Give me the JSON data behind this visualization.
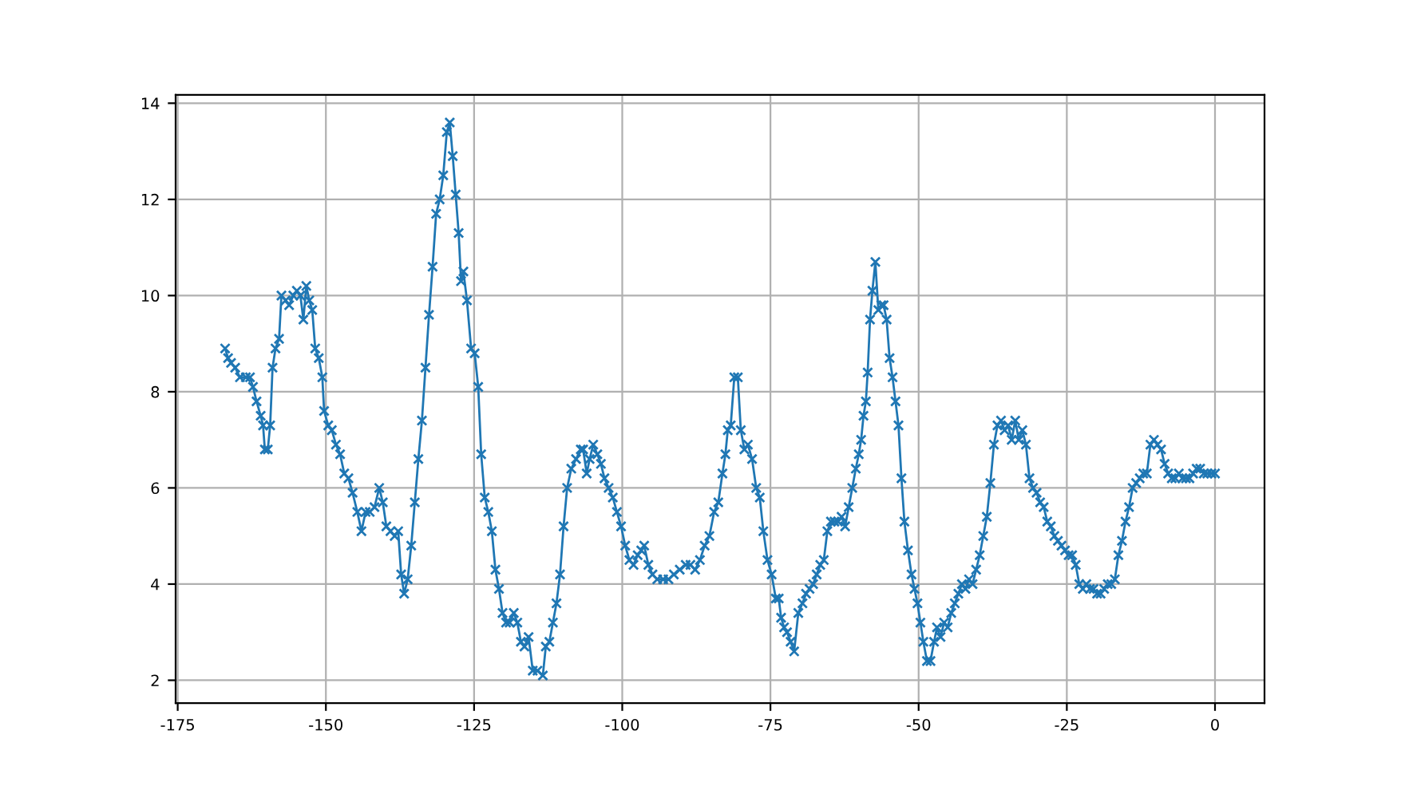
{
  "chart_data": {
    "type": "line",
    "marker": "cross",
    "grid": true,
    "xlim": [
      -175.35,
      8.35
    ],
    "ylim": [
      1.525,
      14.175
    ],
    "xticks": [
      -175,
      -150,
      -125,
      -100,
      -75,
      -50,
      -25,
      0
    ],
    "yticks": [
      2,
      4,
      6,
      8,
      10,
      12,
      14
    ],
    "series": [
      {
        "color": "#1f77b4",
        "x": [
          -167,
          -166.5,
          -166,
          -165.3,
          -164.5,
          -163.5,
          -162.8,
          -162.3,
          -161.7,
          -161,
          -160.6,
          -160.3,
          -159.8,
          -159.4,
          -159,
          -158.5,
          -157.9,
          -157.5,
          -156.8,
          -156.2,
          -155.5,
          -154.9,
          -154.3,
          -153.8,
          -153.3,
          -152.8,
          -152.3,
          -151.8,
          -151.2,
          -150.6,
          -150.3,
          -149.6,
          -149,
          -148.3,
          -147.6,
          -146.9,
          -146.2,
          -145.5,
          -144.7,
          -144,
          -143.3,
          -142.6,
          -141.8,
          -141,
          -140.4,
          -139.8,
          -139.1,
          -138.4,
          -137.8,
          -137.3,
          -136.8,
          -136.2,
          -135.6,
          -135,
          -134.4,
          -133.8,
          -133.2,
          -132.6,
          -132,
          -131.4,
          -130.8,
          -130.2,
          -129.6,
          -129.1,
          -128.6,
          -128.1,
          -127.6,
          -127.2,
          -126.8,
          -126.2,
          -125.5,
          -124.9,
          -124.3,
          -123.8,
          -123.2,
          -122.6,
          -122,
          -121.4,
          -120.8,
          -120.2,
          -119.6,
          -119,
          -118.3,
          -117.7,
          -117.1,
          -116.5,
          -115.8,
          -115.1,
          -114.3,
          -113.4,
          -112.9,
          -112.3,
          -111.7,
          -111.1,
          -110.5,
          -109.9,
          -109.3,
          -108.6,
          -107.8,
          -107,
          -106.6,
          -106,
          -105.5,
          -104.9,
          -104.2,
          -103.6,
          -103,
          -102.3,
          -101.6,
          -100.9,
          -100.2,
          -99.5,
          -98.8,
          -98.1,
          -97.4,
          -96.8,
          -96.3,
          -95.6,
          -94.9,
          -94.1,
          -93.1,
          -92.2,
          -91.3,
          -90.3,
          -89.3,
          -88.5,
          -87.7,
          -86.9,
          -86.1,
          -85.3,
          -84.5,
          -83.8,
          -83.1,
          -82.6,
          -82.2,
          -81.7,
          -81.1,
          -80.5,
          -80,
          -79.4,
          -78.8,
          -78.1,
          -77.4,
          -76.8,
          -76.2,
          -75.5,
          -74.8,
          -74.1,
          -73.6,
          -73.2,
          -72.7,
          -72.2,
          -71.6,
          -71,
          -70.3,
          -69.6,
          -69,
          -68.4,
          -67.8,
          -67.2,
          -66.6,
          -66,
          -65.4,
          -64.8,
          -64.2,
          -63.6,
          -63,
          -62.4,
          -61.8,
          -61.2,
          -60.6,
          -60.1,
          -59.7,
          -59.3,
          -58.9,
          -58.6,
          -58.2,
          -57.8,
          -57.3,
          -56.8,
          -56.3,
          -55.9,
          -55.4,
          -54.9,
          -54.4,
          -53.9,
          -53.4,
          -52.9,
          -52.4,
          -51.8,
          -51.2,
          -50.7,
          -50.2,
          -49.7,
          -49.2,
          -48.6,
          -48,
          -47.4,
          -46.9,
          -46.3,
          -45.7,
          -45.1,
          -44.5,
          -43.9,
          -43.3,
          -42.7,
          -42.1,
          -41.5,
          -40.9,
          -40.3,
          -39.7,
          -39.1,
          -38.5,
          -37.9,
          -37.3,
          -36.7,
          -36.1,
          -35.5,
          -34.9,
          -34.3,
          -33.7,
          -33.1,
          -32.5,
          -31.9,
          -31.3,
          -30.7,
          -30.1,
          -29.5,
          -28.9,
          -28.3,
          -27.7,
          -27.1,
          -26.5,
          -25.9,
          -25.3,
          -24.7,
          -24.1,
          -23.5,
          -22.9,
          -22.3,
          -21.7,
          -21.1,
          -20.5,
          -19.9,
          -19.3,
          -18.7,
          -18.1,
          -17.5,
          -16.9,
          -16.3,
          -15.7,
          -15.1,
          -14.5,
          -13.9,
          -13.3,
          -12.7,
          -12.1,
          -11.5,
          -10.9,
          -10.3,
          -9.7,
          -9.1,
          -8.5,
          -7.9,
          -7.3,
          -6.7,
          -6.1,
          -5.5,
          -4.9,
          -4.3,
          -3.7,
          -3.1,
          -2.5,
          -1.9,
          -1.3,
          -0.6,
          0
        ],
        "values": [
          8.9,
          8.7,
          8.6,
          8.5,
          8.3,
          8.3,
          8.3,
          8.1,
          7.8,
          7.5,
          7.3,
          6.8,
          6.8,
          7.3,
          8.5,
          8.9,
          9.1,
          10.0,
          9.9,
          9.8,
          10.0,
          10.1,
          10.0,
          9.5,
          10.2,
          9.9,
          9.7,
          8.9,
          8.7,
          8.3,
          7.6,
          7.3,
          7.2,
          6.9,
          6.7,
          6.3,
          6.2,
          5.9,
          5.5,
          5.1,
          5.5,
          5.5,
          5.6,
          6.0,
          5.7,
          5.2,
          5.1,
          5.0,
          5.1,
          4.2,
          3.8,
          4.1,
          4.8,
          5.7,
          6.6,
          7.4,
          8.5,
          9.6,
          10.6,
          11.7,
          12.0,
          12.5,
          13.4,
          13.6,
          12.9,
          12.1,
          11.3,
          10.3,
          10.5,
          9.9,
          8.9,
          8.8,
          8.1,
          6.7,
          5.8,
          5.5,
          5.1,
          4.3,
          3.9,
          3.4,
          3.2,
          3.2,
          3.4,
          3.2,
          2.8,
          2.7,
          2.9,
          2.2,
          2.2,
          2.1,
          2.7,
          2.8,
          3.2,
          3.6,
          4.2,
          5.2,
          6.0,
          6.4,
          6.6,
          6.8,
          6.8,
          6.3,
          6.6,
          6.9,
          6.7,
          6.5,
          6.2,
          6.0,
          5.8,
          5.5,
          5.2,
          4.8,
          4.5,
          4.4,
          4.6,
          4.7,
          4.8,
          4.4,
          4.2,
          4.1,
          4.1,
          4.1,
          4.2,
          4.3,
          4.4,
          4.4,
          4.3,
          4.5,
          4.8,
          5.0,
          5.5,
          5.7,
          6.3,
          6.7,
          7.2,
          7.3,
          8.3,
          8.3,
          7.2,
          6.8,
          6.9,
          6.6,
          6.0,
          5.8,
          5.1,
          4.5,
          4.2,
          3.7,
          3.7,
          3.3,
          3.1,
          3.0,
          2.8,
          2.6,
          3.4,
          3.6,
          3.8,
          3.9,
          4.0,
          4.2,
          4.4,
          4.5,
          5.1,
          5.3,
          5.3,
          5.3,
          5.4,
          5.2,
          5.6,
          6.0,
          6.4,
          6.7,
          7.0,
          7.5,
          7.8,
          8.4,
          9.5,
          10.1,
          10.7,
          9.7,
          9.8,
          9.8,
          9.5,
          8.7,
          8.3,
          7.8,
          7.3,
          6.2,
          5.3,
          4.7,
          4.2,
          3.9,
          3.6,
          3.2,
          2.8,
          2.4,
          2.4,
          2.8,
          3.1,
          2.9,
          3.2,
          3.1,
          3.4,
          3.6,
          3.8,
          4.0,
          3.9,
          4.1,
          4.0,
          4.3,
          4.6,
          5.0,
          5.4,
          6.1,
          6.9,
          7.3,
          7.4,
          7.2,
          7.3,
          7.0,
          7.4,
          7.0,
          7.2,
          6.9,
          6.2,
          6.0,
          5.9,
          5.7,
          5.6,
          5.3,
          5.2,
          5.0,
          4.9,
          4.8,
          4.7,
          4.6,
          4.6,
          4.4,
          4.0,
          3.9,
          4.0,
          3.9,
          3.9,
          3.8,
          3.8,
          3.9,
          4.0,
          4.0,
          4.1,
          4.6,
          4.9,
          5.3,
          5.6,
          6.0,
          6.1,
          6.2,
          6.3,
          6.3,
          6.9,
          7.0,
          6.9,
          6.8,
          6.5,
          6.3,
          6.2,
          6.2,
          6.3,
          6.2,
          6.2,
          6.2,
          6.3,
          6.4,
          6.4,
          6.3,
          6.3,
          6.3,
          6.3
        ]
      }
    ]
  }
}
